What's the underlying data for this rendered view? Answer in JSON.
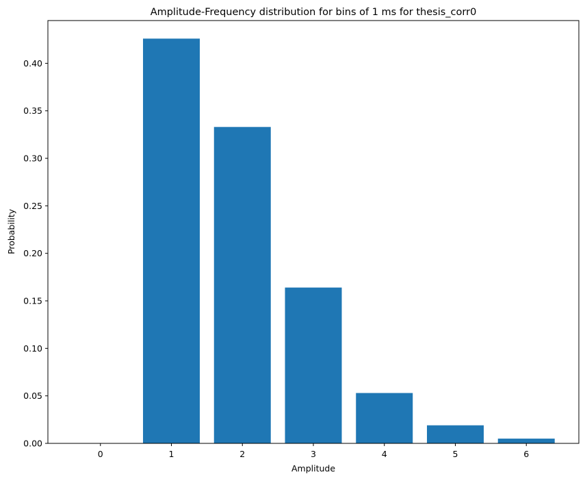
{
  "chart_data": {
    "type": "bar",
    "title": "Amplitude-Frequency distribution for bins of 1 ms for thesis_corr0",
    "xlabel": "Amplitude",
    "ylabel": "Probability",
    "categories": [
      "0",
      "1",
      "2",
      "3",
      "4",
      "5",
      "6"
    ],
    "values": [
      0.0,
      0.426,
      0.333,
      0.164,
      0.053,
      0.019,
      0.005
    ],
    "ylim": [
      0,
      0.445
    ],
    "yticks": [
      "0.00",
      "0.05",
      "0.10",
      "0.15",
      "0.20",
      "0.25",
      "0.30",
      "0.35",
      "0.40"
    ],
    "bar_color": "#1f77b4",
    "grid": false,
    "legend": "none"
  }
}
